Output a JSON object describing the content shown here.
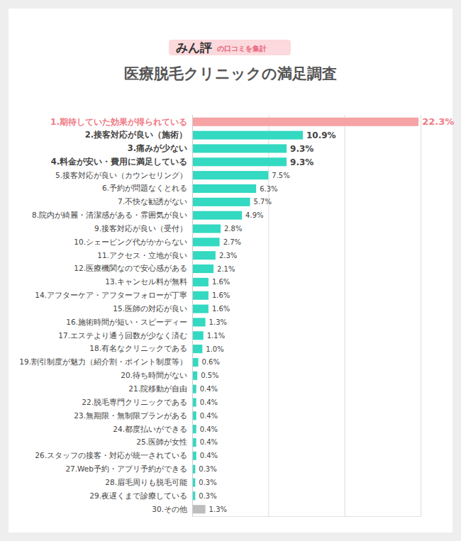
{
  "chart_data": {
    "type": "bar",
    "orientation": "horizontal",
    "title": "医療脱毛クリニックの満足調査",
    "annotations": [
      "みん評",
      "の口コミを集計"
    ],
    "categories": [
      "1.期待していた効果が得られている",
      "2.接客対応が良い（施術）",
      "3.痛みが少ない",
      "4.料金が安い・費用に満足している",
      "5.接客対応が良い（カウンセリング）",
      "6.予約が問題なくとれる",
      "7.不快な勧誘がない",
      "8.院内が綺麗・清潔感がある・雰囲気が良い",
      "9.接客対応が良い（受付）",
      "10.シェービング代がかからない",
      "11.アクセス・立地が良い",
      "12.医療機関なので安心感がある",
      "13.キャンセル料が無料",
      "14.アフターケア・アフターフォローが丁寧",
      "15.医師の対応が良い",
      "16.施術時間が短い・スピーディー",
      "17.エステより通う回数が少なく済む",
      "18.有名なクリニックである",
      "19.割引制度が魅力（紹介割・ポイント制度等）",
      "20.待ち時間がない",
      "21.院移動が自由",
      "22.脱毛専門クリニックである",
      "23.無期限・無制限プランがある",
      "24.都度払いができる",
      "25.医師が女性",
      "26.スタッフの接客・対応が統一されている",
      "27.Web予約・アプリ予約ができる",
      "28.眉毛周りも脱毛可能",
      "29.夜遅くまで診療している",
      "30.その他"
    ],
    "values": [
      22.3,
      10.9,
      9.3,
      9.3,
      7.5,
      6.3,
      5.7,
      4.9,
      2.8,
      2.7,
      2.3,
      2.1,
      1.6,
      1.6,
      1.6,
      1.3,
      1.1,
      1.0,
      0.6,
      0.5,
      0.4,
      0.4,
      0.4,
      0.4,
      0.4,
      0.4,
      0.3,
      0.3,
      0.3,
      1.3
    ],
    "value_labels": [
      "22.3%",
      "10.9%",
      "9.3%",
      "9.3%",
      "7.5%",
      "6.3%",
      "5.7%",
      "4.9%",
      "2.8%",
      "2.7%",
      "2.3%",
      "2.1%",
      "1.6%",
      "1.6%",
      "1.6%",
      "1.3%",
      "1.1%",
      "1.0%",
      "0.6%",
      "0.5%",
      "0.4%",
      "0.4%",
      "0.4%",
      "0.4%",
      "0.4%",
      "0.4%",
      "0.3%",
      "0.3%",
      "0.3%",
      "1.3%"
    ],
    "colors": [
      "#f6a3a6",
      "#33d9c1",
      "#33d9c1",
      "#33d9c1",
      "#33d9c1",
      "#33d9c1",
      "#33d9c1",
      "#33d9c1",
      "#33d9c1",
      "#33d9c1",
      "#33d9c1",
      "#33d9c1",
      "#33d9c1",
      "#33d9c1",
      "#33d9c1",
      "#33d9c1",
      "#33d9c1",
      "#33d9c1",
      "#33d9c1",
      "#33d9c1",
      "#33d9c1",
      "#33d9c1",
      "#33d9c1",
      "#33d9c1",
      "#33d9c1",
      "#33d9c1",
      "#33d9c1",
      "#33d9c1",
      "#33d9c1",
      "#bdbdbd"
    ],
    "xlim": [
      0,
      22.5
    ],
    "xticks": [
      0,
      7.5,
      15,
      22.5
    ],
    "grid": true,
    "data_labels": true,
    "tick_labels": "y"
  }
}
